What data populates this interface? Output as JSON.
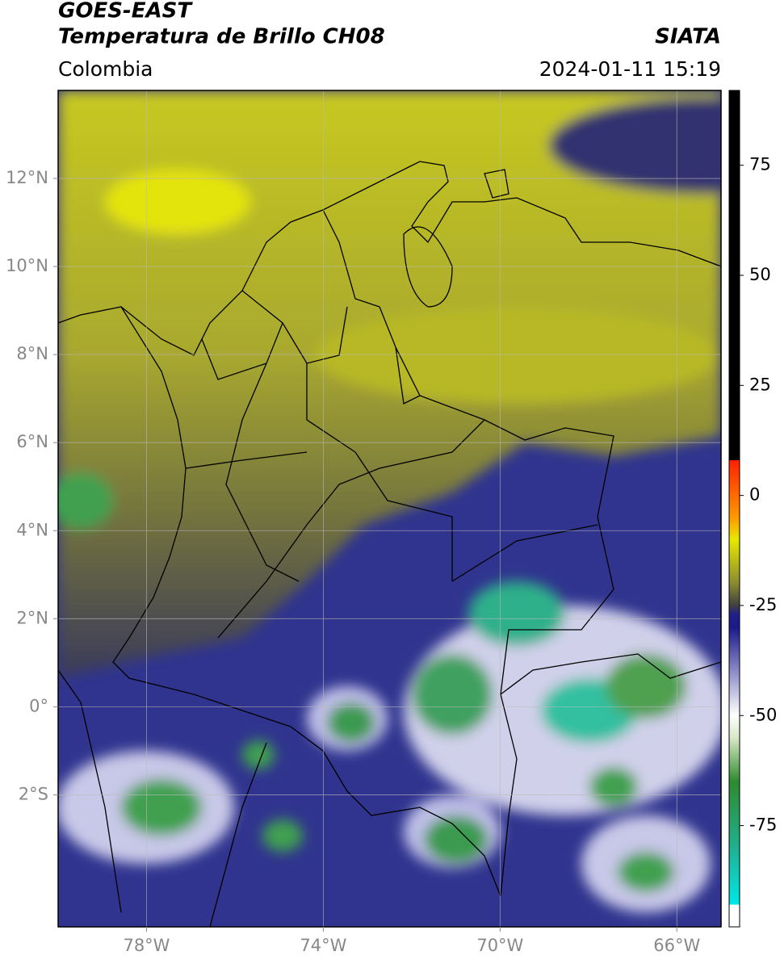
{
  "chart_data": {
    "type": "map",
    "title": "GOES-EAST",
    "subtitle": "Temperatura de Brillo CH08",
    "region": "Colombia",
    "source": "SIATA",
    "timestamp": "2024-01-11 15:19",
    "xlim": [
      -80,
      -65
    ],
    "ylim": [
      -5,
      14
    ],
    "xticks": [
      {
        "value": -78,
        "label": "78°W"
      },
      {
        "value": -74,
        "label": "74°W"
      },
      {
        "value": -70,
        "label": "70°W"
      },
      {
        "value": -66,
        "label": "66°W"
      }
    ],
    "yticks": [
      {
        "value": 12,
        "label": "12°N"
      },
      {
        "value": 10,
        "label": "10°N"
      },
      {
        "value": 8,
        "label": "8°N"
      },
      {
        "value": 6,
        "label": "6°N"
      },
      {
        "value": 4,
        "label": "4°N"
      },
      {
        "value": 2,
        "label": "2°N"
      },
      {
        "value": 0,
        "label": "0°"
      },
      {
        "value": -2,
        "label": "2°S"
      }
    ],
    "grid": true,
    "colorbar": {
      "lim": [
        -98,
        92
      ],
      "ticks": [
        75,
        50,
        25,
        0,
        -25,
        -50,
        -75
      ],
      "colormap": [
        {
          "value": -98,
          "color": "#ffffff"
        },
        {
          "value": -93,
          "color": "#ffffff"
        },
        {
          "value": -93,
          "color": "#00e8e8"
        },
        {
          "value": -80,
          "color": "#20b090"
        },
        {
          "value": -65,
          "color": "#2e8b2e"
        },
        {
          "value": -55,
          "color": "#d8e8c8"
        },
        {
          "value": -50,
          "color": "#ffffff"
        },
        {
          "value": -40,
          "color": "#8c8cc8"
        },
        {
          "value": -30,
          "color": "#1a1a8a"
        },
        {
          "value": -27,
          "color": "#20208a"
        },
        {
          "value": -25,
          "color": "#404040"
        },
        {
          "value": -20,
          "color": "#8a8a30"
        },
        {
          "value": -10,
          "color": "#e8e800"
        },
        {
          "value": -5,
          "color": "#ff9900"
        },
        {
          "value": 8,
          "color": "#ff2000"
        },
        {
          "value": 8,
          "color": "#000000"
        },
        {
          "value": 92,
          "color": "#000000"
        }
      ]
    }
  }
}
